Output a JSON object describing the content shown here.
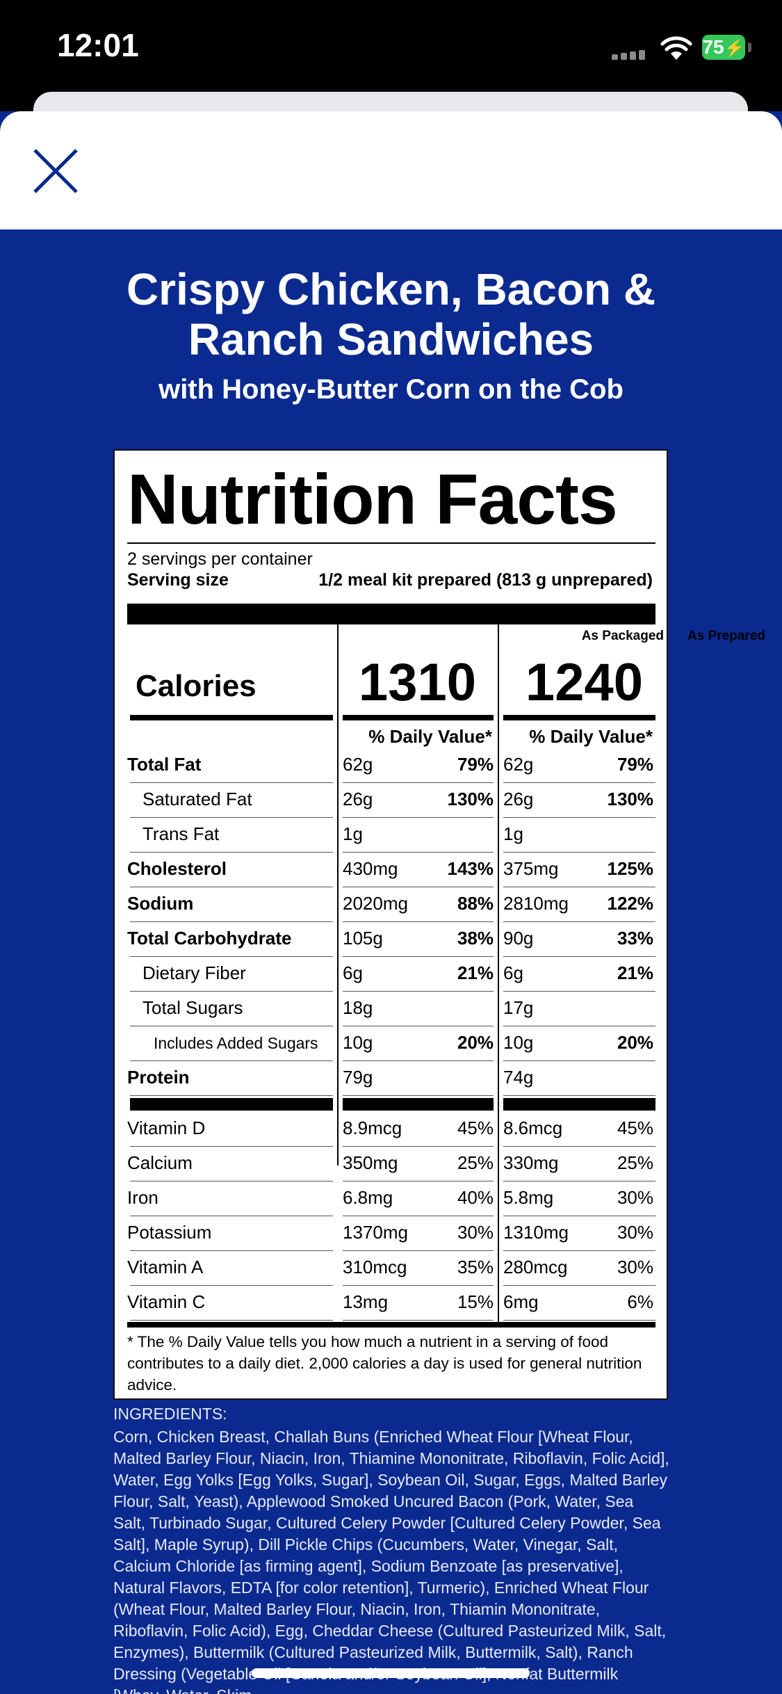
{
  "status_bar": {
    "time": "12:01",
    "battery": "75"
  },
  "header": {
    "title": "Crispy Chicken, Bacon & Ranch Sandwiches",
    "subtitle": "with Honey-Butter Corn on the Cob"
  },
  "label": {
    "heading": "Nutrition Facts",
    "servings": "2 servings per container",
    "serving_size_label": "Serving size",
    "serving_size_value": "1/2 meal kit prepared (813 g unprepared)",
    "col_packaged": "As Packaged",
    "col_prepared": "As Prepared",
    "calories_label": "Calories",
    "calories_packaged": "1310",
    "calories_prepared": "1240",
    "dv_header": "% Daily Value*",
    "rows": [
      {
        "name": "Total Fat",
        "pa": "62g",
        "pd": "79%",
        "ra": "62g",
        "rd": "79%",
        "bold": true,
        "indent": 0
      },
      {
        "name": "Saturated Fat",
        "pa": "26g",
        "pd": "130%",
        "ra": "26g",
        "rd": "130%",
        "bold": false,
        "indent": 1
      },
      {
        "name": "Trans Fat",
        "pa": "1g",
        "pd": "",
        "ra": "1g",
        "rd": "",
        "bold": false,
        "indent": 1
      },
      {
        "name": "Cholesterol",
        "pa": "430mg",
        "pd": "143%",
        "ra": "375mg",
        "rd": "125%",
        "bold": true,
        "indent": 0
      },
      {
        "name": "Sodium",
        "pa": "2020mg",
        "pd": "88%",
        "ra": "2810mg",
        "rd": "122%",
        "bold": true,
        "indent": 0
      },
      {
        "name": "Total Carbohydrate",
        "pa": "105g",
        "pd": "38%",
        "ra": "90g",
        "rd": "33%",
        "bold": true,
        "indent": 0
      },
      {
        "name": "Dietary Fiber",
        "pa": "6g",
        "pd": "21%",
        "ra": "6g",
        "rd": "21%",
        "bold": false,
        "indent": 1
      },
      {
        "name": "Total Sugars",
        "pa": "18g",
        "pd": "",
        "ra": "17g",
        "rd": "",
        "bold": false,
        "indent": 1
      },
      {
        "name": "Includes Added Sugars",
        "pa": "10g",
        "pd": "20%",
        "ra": "10g",
        "rd": "20%",
        "bold": false,
        "indent": 2
      },
      {
        "name": "Protein",
        "pa": "79g",
        "pd": "",
        "ra": "74g",
        "rd": "",
        "bold": true,
        "indent": 0
      }
    ],
    "vitamins": [
      {
        "name": "Vitamin D",
        "pa": "8.9mcg",
        "pd": "45%",
        "ra": "8.6mcg",
        "rd": "45%"
      },
      {
        "name": "Calcium",
        "pa": "350mg",
        "pd": "25%",
        "ra": "330mg",
        "rd": "25%"
      },
      {
        "name": "Iron",
        "pa": "6.8mg",
        "pd": "40%",
        "ra": "5.8mg",
        "rd": "30%"
      },
      {
        "name": "Potassium",
        "pa": "1370mg",
        "pd": "30%",
        "ra": "1310mg",
        "rd": "30%"
      },
      {
        "name": "Vitamin A",
        "pa": "310mcg",
        "pd": "35%",
        "ra": "280mcg",
        "rd": "30%"
      },
      {
        "name": "Vitamin C",
        "pa": "13mg",
        "pd": "15%",
        "ra": "6mg",
        "rd": "6%"
      }
    ],
    "footnote": "* The % Daily Value tells you how much a nutrient in a serving of food contributes to a daily diet. 2,000 calories a day is used for general nutrition advice."
  },
  "ingredients": {
    "title": "INGREDIENTS:",
    "text": "Corn, Chicken Breast, Challah Buns (Enriched Wheat Flour [Wheat Flour, Malted Barley Flour, Niacin, Iron, Thiamine Mononitrate, Riboflavin, Folic Acid], Water, Egg Yolks [Egg Yolks, Sugar], Soybean Oil, Sugar, Eggs, Malted Barley Flour, Salt, Yeast), Applewood Smoked Uncured Bacon (Pork, Water, Sea Salt, Turbinado Sugar, Cultured Celery Powder [Cultured Celery Powder, Sea Salt], Maple Syrup), Dill Pickle Chips (Cucumbers, Water, Vinegar, Salt, Calcium Chloride [as firming agent], Sodium Benzoate [as preservative], Natural Flavors, EDTA [for color retention], Turmeric), Enriched Wheat Flour (Wheat Flour, Malted Barley Flour, Niacin, Iron, Thiamin Mononitrate, Riboflavin, Folic Acid), Egg, Cheddar Cheese (Cultured Pasteurized Milk, Salt, Enzymes), Buttermilk (Cultured Pasteurized Milk, Buttermilk, Salt), Ranch Dressing (Vegetable Oil [Canola and/or Soybean Oil], Nonfat Buttermilk [Whey, Water, Skim"
  }
}
